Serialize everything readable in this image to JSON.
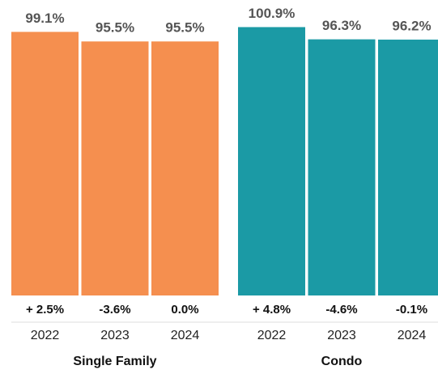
{
  "chart_data": [
    {
      "type": "bar",
      "title": "Single Family",
      "categories": [
        "2022",
        "2023",
        "2024"
      ],
      "values": [
        99.1,
        95.5,
        95.5
      ],
      "value_labels": [
        "99.1%",
        "95.5%",
        "95.5%"
      ],
      "annotations": [
        "+ 2.5%",
        "-3.6%",
        "0.0%"
      ],
      "color": "#f58f4f",
      "ylim": [
        0,
        105
      ]
    },
    {
      "type": "bar",
      "title": "Condo",
      "categories": [
        "2022",
        "2023",
        "2024"
      ],
      "values": [
        100.9,
        96.3,
        96.2
      ],
      "value_labels": [
        "100.9%",
        "96.3%",
        "96.2%"
      ],
      "annotations": [
        "+ 4.8%",
        "-4.6%",
        "-0.1%"
      ],
      "color": "#1b9aa5",
      "ylim": [
        0,
        105
      ]
    }
  ]
}
